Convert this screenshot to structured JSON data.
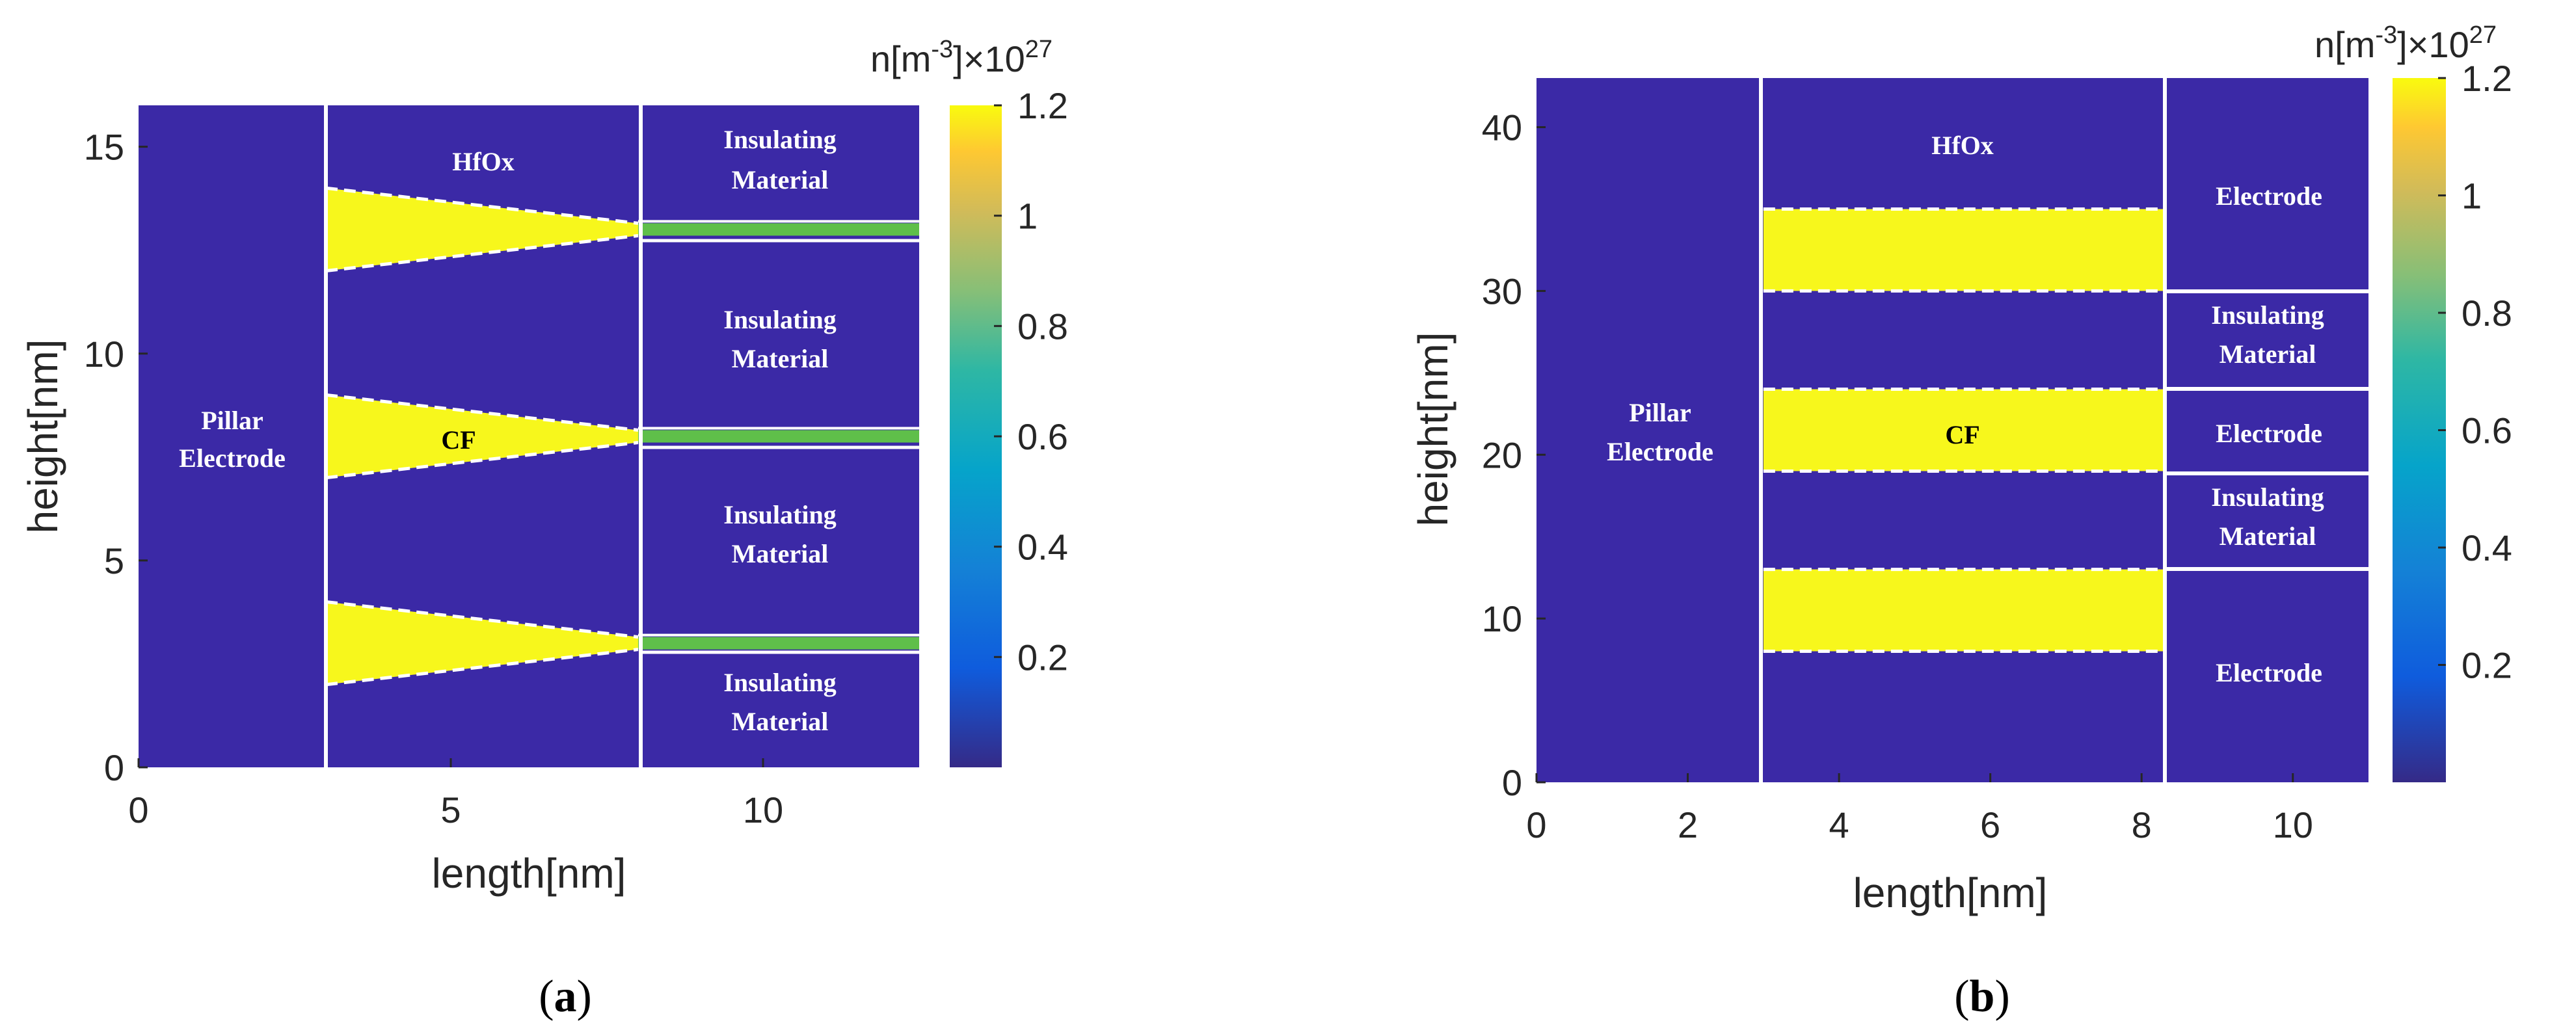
{
  "colors": {
    "background_region": "#3b29a6",
    "filament": "#f7f71c",
    "filament_neck": "#5fbf4a",
    "boundary": "#ffffff"
  },
  "chart_data": [
    {
      "type": "heatmap",
      "panel": "a",
      "caption_letter": "a",
      "xlabel": "length[nm]",
      "ylabel": "height[nm]",
      "xlim": [
        0,
        12.5
      ],
      "ylim": [
        0,
        16
      ],
      "xticks": [
        "0",
        "5",
        "10"
      ],
      "yticks": [
        "0",
        "5",
        "10",
        "15"
      ],
      "colorbar": {
        "title_base": "n[m",
        "title_exp": "-3",
        "title_mid": "]×10",
        "title_pow": "27",
        "range": [
          0,
          1.2
        ],
        "ticks": [
          "0.2",
          "0.4",
          "0.6",
          "0.8",
          "1",
          "1.2"
        ]
      },
      "region_labels": {
        "pillar_line1": "Pillar",
        "pillar_line2": "Electrode",
        "oxide": "HfOx",
        "filament": "CF",
        "insulating_line1": "Insulating",
        "insulating_line2": "Material"
      },
      "filaments": [
        {
          "x_start": 3,
          "x_end": 8,
          "y_center": 13,
          "height_start": 2.0,
          "height_end": 0.3
        },
        {
          "x_start": 3,
          "x_end": 8,
          "y_center": 8,
          "height_start": 2.0,
          "height_end": 0.3
        },
        {
          "x_start": 3,
          "x_end": 8,
          "y_center": 3,
          "height_start": 2.0,
          "height_end": 0.3
        }
      ],
      "electrode_boundary_x": 3,
      "oxide_boundary_x": 8
    },
    {
      "type": "heatmap",
      "panel": "b",
      "caption_letter": "b",
      "xlabel": "length[nm]",
      "ylabel": "height[nm]",
      "xlim": [
        0,
        11
      ],
      "ylim": [
        0,
        43
      ],
      "xticks": [
        "0",
        "2",
        "4",
        "6",
        "8",
        "10"
      ],
      "yticks": [
        "0",
        "10",
        "20",
        "30",
        "40"
      ],
      "colorbar": {
        "title_base": "n[m",
        "title_exp": "-3",
        "title_mid": "]×10",
        "title_pow": "27",
        "range": [
          0,
          1.2
        ],
        "ticks": [
          "0.2",
          "0.4",
          "0.6",
          "0.8",
          "1",
          "1.2"
        ]
      },
      "region_labels": {
        "pillar_line1": "Pillar",
        "pillar_line2": "Electrode",
        "oxide": "HfOx",
        "filament": "CF",
        "electrode": "Electrode",
        "insulating_line1": "Insulating",
        "insulating_line2": "Material"
      },
      "filaments": [
        {
          "x_start": 3,
          "x_end": 8.3,
          "y_bottom": 30,
          "y_top": 35
        },
        {
          "x_start": 3,
          "x_end": 8.3,
          "y_bottom": 19,
          "y_top": 24
        },
        {
          "x_start": 3,
          "x_end": 8.3,
          "y_bottom": 8,
          "y_top": 13
        }
      ],
      "electrode_boundary_x": 3,
      "oxide_boundary_x": 8.3
    }
  ]
}
